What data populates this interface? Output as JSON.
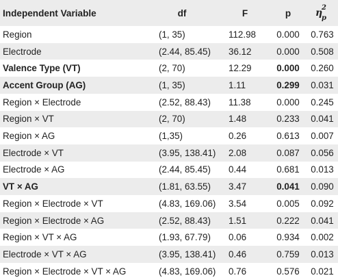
{
  "table": {
    "headers": {
      "variable": "Independent Variable",
      "df": "df",
      "f": "F",
      "p": "p",
      "eta_symbol": "η",
      "eta_sup": "2",
      "eta_sub": "p"
    },
    "rows": [
      {
        "variable": "Region",
        "df": "(1, 35)",
        "f": "112.98",
        "p": "0.000",
        "eta": "0.763",
        "bold_variable": false,
        "bold_p": false
      },
      {
        "variable": "Electrode",
        "df": "(2.44, 85.45)",
        "f": "36.12",
        "p": "0.000",
        "eta": "0.508",
        "bold_variable": false,
        "bold_p": false
      },
      {
        "variable": "Valence Type (VT)",
        "df": "(2, 70)",
        "f": "12.29",
        "p": "0.000",
        "eta": "0.260",
        "bold_variable": true,
        "bold_p": true
      },
      {
        "variable": "Accent Group (AG)",
        "df": "(1, 35)",
        "f": "1.11",
        "p": "0.299",
        "eta": "0.031",
        "bold_variable": true,
        "bold_p": true
      },
      {
        "variable": "Region × Electrode",
        "df": "(2.52, 88.43)",
        "f": "11.38",
        "p": "0.000",
        "eta": "0.245",
        "bold_variable": false,
        "bold_p": false
      },
      {
        "variable": "Region × VT",
        "df": "(2, 70)",
        "f": "1.48",
        "p": "0.233",
        "eta": "0.041",
        "bold_variable": false,
        "bold_p": false
      },
      {
        "variable": "Region × AG",
        "df": "(1,35)",
        "f": "0.26",
        "p": "0.613",
        "eta": "0.007",
        "bold_variable": false,
        "bold_p": false
      },
      {
        "variable": "Electrode × VT",
        "df": "(3.95, 138.41)",
        "f": "2.08",
        "p": "0.087",
        "eta": "0.056",
        "bold_variable": false,
        "bold_p": false
      },
      {
        "variable": "Electrode × AG",
        "df": "(2.44, 85.45)",
        "f": "0.44",
        "p": "0.681",
        "eta": "0.013",
        "bold_variable": false,
        "bold_p": false
      },
      {
        "variable": "VT × AG",
        "df": "(1.81, 63.55)",
        "f": "3.47",
        "p": "0.041",
        "eta": "0.090",
        "bold_variable": true,
        "bold_p": true
      },
      {
        "variable": "Region × Electrode × VT",
        "df": "(4.83, 169.06)",
        "f": "3.54",
        "p": "0.005",
        "eta": "0.092",
        "bold_variable": false,
        "bold_p": false
      },
      {
        "variable": "Region × Electrode × AG",
        "df": "(2.52, 88.43)",
        "f": "1.51",
        "p": "0.222",
        "eta": "0.041",
        "bold_variable": false,
        "bold_p": false
      },
      {
        "variable": "Region × VT × AG",
        "df": "(1.93, 67.79)",
        "f": "0.06",
        "p": "0.934",
        "eta": "0.002",
        "bold_variable": false,
        "bold_p": false
      },
      {
        "variable": "Electrode × VT × AG",
        "df": "(3.95, 138.41)",
        "f": "0.46",
        "p": "0.759",
        "eta": "0.013",
        "bold_variable": false,
        "bold_p": false
      },
      {
        "variable": "Region × Electrode × VT × AG",
        "df": "(4.83, 169.06)",
        "f": "0.76",
        "p": "0.576",
        "eta": "0.021",
        "bold_variable": false,
        "bold_p": false
      }
    ]
  },
  "colors": {
    "stripe": "#ececec",
    "background": "#ffffff",
    "text": "#222222"
  }
}
